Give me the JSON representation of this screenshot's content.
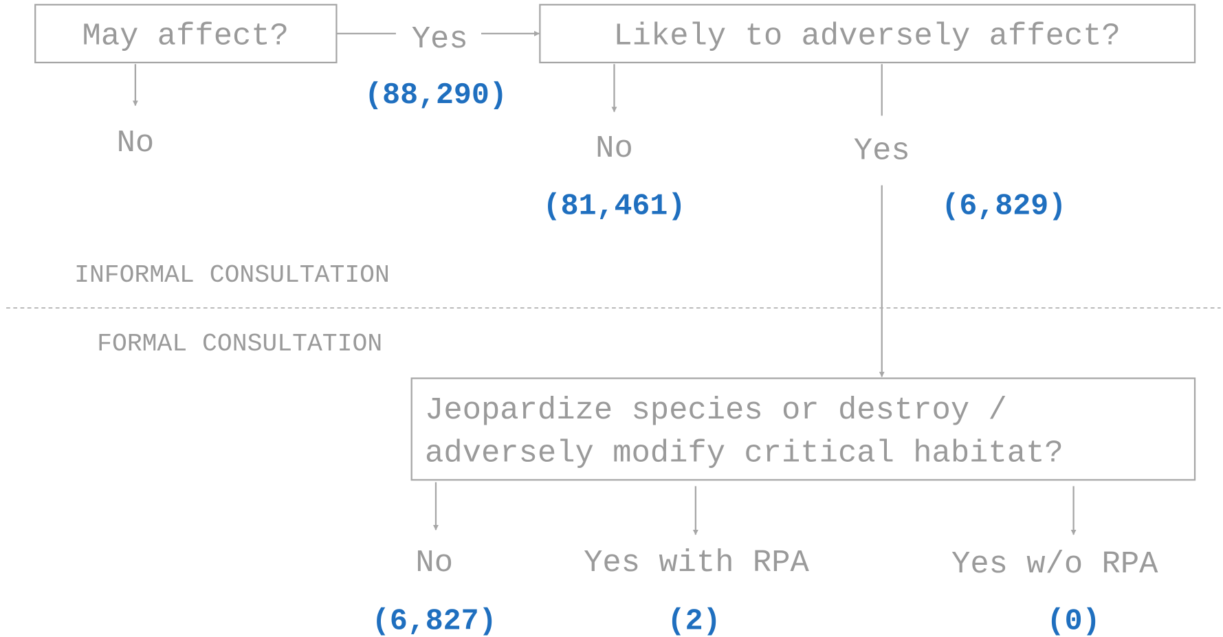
{
  "nodes": [
    {
      "label": "May affect?"
    },
    {
      "label": "Likely to adversely affect?"
    },
    {
      "lines": [
        "Jeopardize species or destroy /",
        "adversely modify critical habitat?"
      ]
    }
  ],
  "edges": [
    {
      "label": "No"
    },
    {
      "label": "Yes",
      "count": "(88,290)"
    },
    {
      "label": "No",
      "count": "(81,461)"
    },
    {
      "label": "Yes",
      "count": "(6,829)"
    },
    {
      "label": "No",
      "count": "(6,827)"
    },
    {
      "label": "Yes with RPA",
      "count": "(2)"
    },
    {
      "label": "Yes w/o RPA",
      "count": "(0)"
    }
  ],
  "sections": [
    "INFORMAL CONSULTATION",
    "FORMAL CONSULTATION"
  ]
}
